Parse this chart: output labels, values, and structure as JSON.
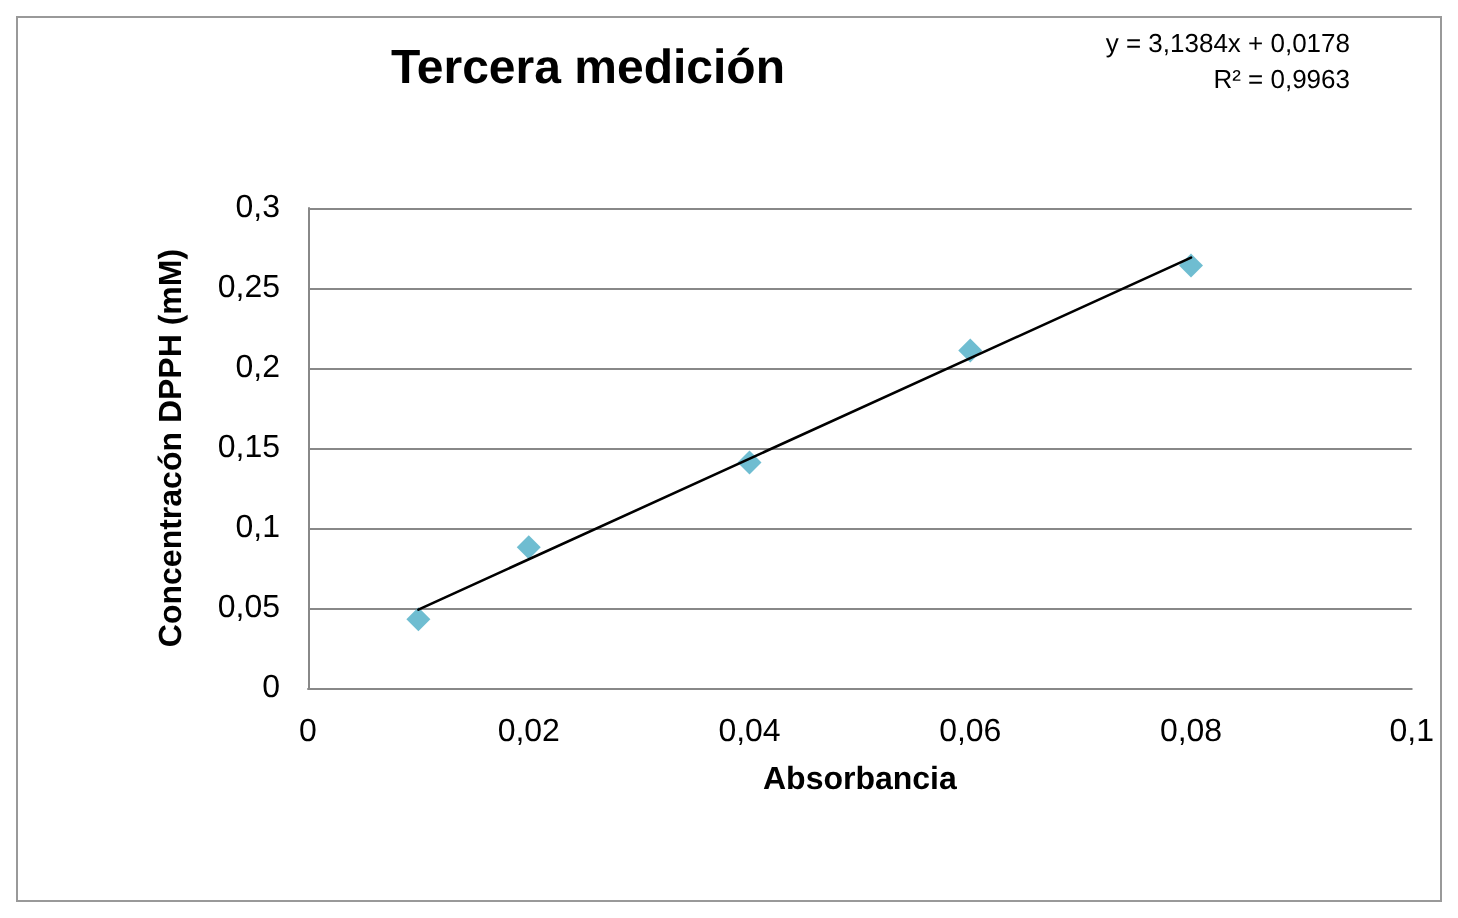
{
  "chart_data": {
    "type": "scatter",
    "title": "Tercera medición",
    "xlabel": "Absorbancia",
    "ylabel": "Concentracón DPPH (mM)",
    "annotations": [
      "y = 3,1384x + 0,0178",
      "R² = 0,9963"
    ],
    "series": [
      {
        "color": "#4bacc6",
        "marker": "diamond",
        "x": [
          0.01,
          0.02,
          0.04,
          0.06,
          0.08
        ],
        "values": [
          0.043,
          0.088,
          0.141,
          0.211,
          0.264
        ]
      },
      {
        "type": "line",
        "color": "#000000",
        "marker": "none",
        "line_style": "solid",
        "x": [
          0.01,
          0.08
        ],
        "values": [
          0.049,
          0.269
        ]
      }
    ],
    "xlim": [
      0,
      0.1
    ],
    "xticks": [
      {
        "value": 0,
        "label": "0"
      },
      {
        "value": 0.02,
        "label": "0,02"
      },
      {
        "value": 0.04,
        "label": "0,04"
      },
      {
        "value": 0.06,
        "label": "0,06"
      },
      {
        "value": 0.08,
        "label": "0,08"
      },
      {
        "value": 0.1,
        "label": "0,1"
      }
    ],
    "ylim": [
      0,
      0.3
    ],
    "yticks": [
      {
        "value": 0,
        "label": "0"
      },
      {
        "value": 0.05,
        "label": "0,05"
      },
      {
        "value": 0.1,
        "label": "0,1"
      },
      {
        "value": 0.15,
        "label": "0,15"
      },
      {
        "value": 0.2,
        "label": "0,2"
      },
      {
        "value": 0.25,
        "label": "0,25"
      },
      {
        "value": 0.3,
        "label": "0,3"
      }
    ],
    "grid": "y"
  }
}
